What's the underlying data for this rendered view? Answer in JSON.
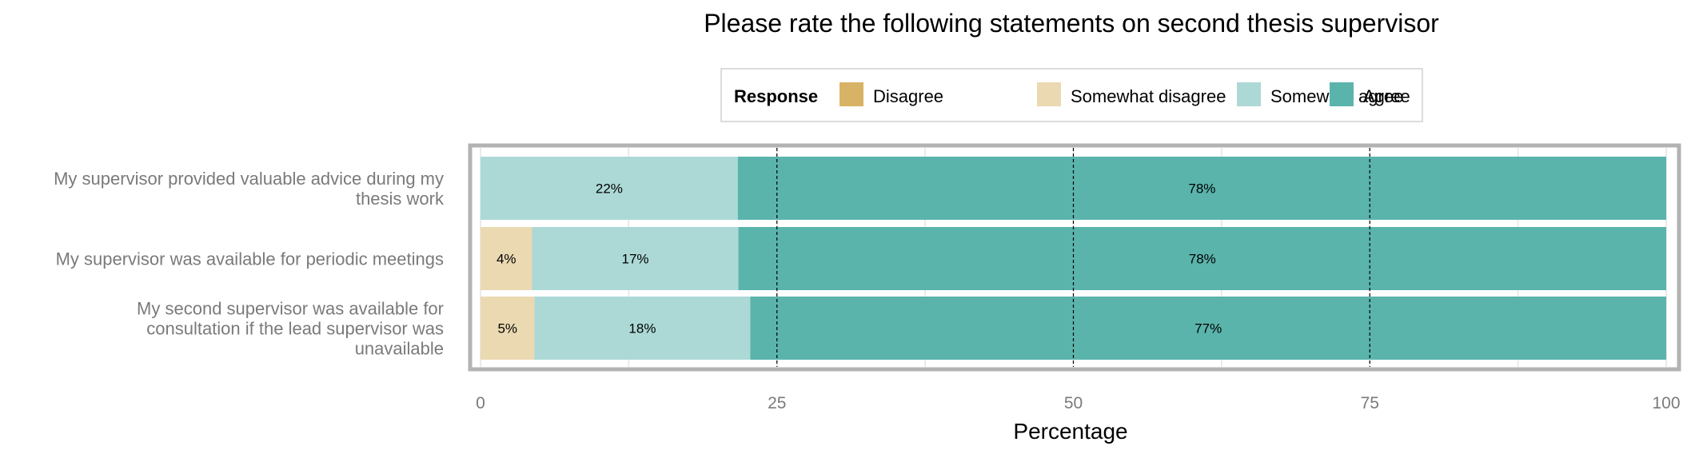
{
  "chart_data": {
    "type": "bar",
    "orientation": "horizontal",
    "stacked": true,
    "title": "Please rate the following statements on second thesis supervisor",
    "xlabel": "Percentage",
    "ylabel": "",
    "xlim": [
      0,
      100
    ],
    "x_ticks": [
      "0",
      "25",
      "50",
      "75",
      "100"
    ],
    "legend": {
      "title": "Response",
      "position": "top",
      "entries": [
        "Disagree",
        "Somewhat disagree",
        "Somewhat agree",
        "Agree"
      ]
    },
    "colors": {
      "Disagree": "#d8b365",
      "Somewhat disagree": "#ebd9b2",
      "Somewhat agree": "#acd9d6",
      "Agree": "#5ab4ac"
    },
    "categories": [
      [
        "My supervisor provided valuable advice during my",
        "thesis work"
      ],
      [
        "My supervisor was available for periodic meetings"
      ],
      [
        "My second supervisor was available for",
        "consultation if the lead supervisor was",
        "unavailable"
      ]
    ],
    "series": [
      {
        "name": "Disagree",
        "values": [
          0,
          0,
          0
        ],
        "labels": [
          "",
          "",
          ""
        ]
      },
      {
        "name": "Somewhat disagree",
        "values": [
          0,
          4.35,
          4.55
        ],
        "labels": [
          "",
          "4%",
          "5%"
        ]
      },
      {
        "name": "Somewhat agree",
        "values": [
          21.7,
          17.4,
          18.2
        ],
        "labels": [
          "22%",
          "17%",
          "18%"
        ]
      },
      {
        "name": "Agree",
        "values": [
          78.3,
          78.25,
          77.25
        ],
        "labels": [
          "78%",
          "78%",
          "77%"
        ]
      }
    ],
    "dashed_lines_at": [
      25,
      50,
      75
    ],
    "grid": true
  }
}
